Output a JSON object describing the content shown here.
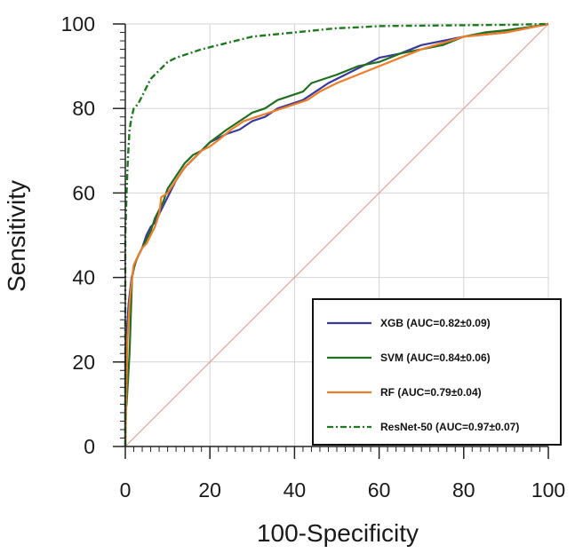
{
  "chart_data": {
    "type": "line",
    "title": "",
    "xlabel": "100-Specificity",
    "ylabel": "Sensitivity",
    "xlim": [
      0,
      100
    ],
    "ylim": [
      0,
      100
    ],
    "xticks": [
      0,
      20,
      40,
      60,
      80,
      100
    ],
    "yticks": [
      0,
      20,
      40,
      60,
      80,
      100
    ],
    "grid": true,
    "legend_position": "bottom-right",
    "reference_line": {
      "name": "chance",
      "color": "#e8a0a0",
      "points": [
        [
          0,
          0
        ],
        [
          100,
          100
        ]
      ]
    },
    "series": [
      {
        "name": "XGB",
        "legend_label": "XGB (AUC=0.82±0.09)",
        "color": "#3a3a9c",
        "style": "solid",
        "points": [
          [
            0,
            0
          ],
          [
            0,
            20
          ],
          [
            0.4,
            28
          ],
          [
            0.8,
            34
          ],
          [
            1.5,
            40
          ],
          [
            2.5,
            44
          ],
          [
            4,
            47
          ],
          [
            5,
            50
          ],
          [
            6,
            52
          ],
          [
            7,
            53
          ],
          [
            8,
            55
          ],
          [
            9,
            57
          ],
          [
            10,
            59
          ],
          [
            12,
            63
          ],
          [
            14,
            66
          ],
          [
            16,
            68
          ],
          [
            18,
            70
          ],
          [
            20,
            72
          ],
          [
            22,
            73
          ],
          [
            24,
            74
          ],
          [
            27,
            75
          ],
          [
            30,
            77
          ],
          [
            33,
            78
          ],
          [
            36,
            80
          ],
          [
            39,
            81
          ],
          [
            42,
            82
          ],
          [
            45,
            84
          ],
          [
            48,
            86
          ],
          [
            52,
            88
          ],
          [
            56,
            90
          ],
          [
            60,
            92
          ],
          [
            65,
            93
          ],
          [
            70,
            95
          ],
          [
            75,
            96
          ],
          [
            80,
            97
          ],
          [
            85,
            97.5
          ],
          [
            90,
            98
          ],
          [
            95,
            99
          ],
          [
            100,
            100
          ]
        ]
      },
      {
        "name": "SVM",
        "legend_label": "SVM (AUC=0.84±0.06)",
        "color": "#1f6f1f",
        "style": "solid",
        "points": [
          [
            0,
            0
          ],
          [
            0,
            8
          ],
          [
            0.3,
            10
          ],
          [
            0.6,
            15
          ],
          [
            1,
            22
          ],
          [
            1.2,
            28
          ],
          [
            1.6,
            40
          ],
          [
            2.2,
            43
          ],
          [
            3,
            45
          ],
          [
            4,
            47
          ],
          [
            5,
            49
          ],
          [
            6,
            51
          ],
          [
            7,
            54
          ],
          [
            8,
            56
          ],
          [
            9,
            58
          ],
          [
            10,
            61
          ],
          [
            12,
            64
          ],
          [
            14,
            67
          ],
          [
            16,
            69
          ],
          [
            18,
            70
          ],
          [
            20,
            72
          ],
          [
            22,
            73.5
          ],
          [
            24,
            75
          ],
          [
            27,
            77
          ],
          [
            30,
            79
          ],
          [
            33,
            80
          ],
          [
            36,
            82
          ],
          [
            39,
            83
          ],
          [
            42,
            84
          ],
          [
            44,
            86
          ],
          [
            47,
            87
          ],
          [
            50,
            88
          ],
          [
            55,
            90
          ],
          [
            60,
            91
          ],
          [
            65,
            93
          ],
          [
            70,
            94
          ],
          [
            75,
            95
          ],
          [
            80,
            97
          ],
          [
            85,
            98
          ],
          [
            90,
            98.5
          ],
          [
            95,
            99.2
          ],
          [
            100,
            100
          ]
        ]
      },
      {
        "name": "RF",
        "legend_label": "RF (AUC=0.79±0.04)",
        "color": "#ee7d2a",
        "style": "solid",
        "points": [
          [
            0,
            0
          ],
          [
            0.5,
            25
          ],
          [
            1,
            34
          ],
          [
            1.5,
            39
          ],
          [
            2,
            43
          ],
          [
            3,
            45
          ],
          [
            4,
            47
          ],
          [
            5,
            48
          ],
          [
            6,
            50
          ],
          [
            7,
            52
          ],
          [
            8,
            55
          ],
          [
            8.5,
            59
          ],
          [
            10,
            60
          ],
          [
            12,
            63
          ],
          [
            14,
            66
          ],
          [
            16,
            68
          ],
          [
            18,
            70
          ],
          [
            20,
            71
          ],
          [
            22,
            72.5
          ],
          [
            25,
            75
          ],
          [
            28,
            77
          ],
          [
            31,
            78
          ],
          [
            34,
            79
          ],
          [
            37,
            80
          ],
          [
            40,
            81
          ],
          [
            43,
            82
          ],
          [
            46,
            84
          ],
          [
            50,
            86
          ],
          [
            55,
            88
          ],
          [
            60,
            90
          ],
          [
            65,
            92
          ],
          [
            70,
            94
          ],
          [
            75,
            95.5
          ],
          [
            80,
            97
          ],
          [
            85,
            97.5
          ],
          [
            90,
            98
          ],
          [
            95,
            99
          ],
          [
            100,
            100
          ]
        ]
      },
      {
        "name": "ResNet-50",
        "legend_label": "ResNet-50 (AUC=0.97±0.07)",
        "color": "#1e7a1e",
        "style": "dashdot",
        "points": [
          [
            0,
            0
          ],
          [
            0,
            30
          ],
          [
            0,
            50
          ],
          [
            0.3,
            60
          ],
          [
            0.6,
            68
          ],
          [
            1,
            75
          ],
          [
            1.5,
            78
          ],
          [
            2,
            80
          ],
          [
            3,
            81
          ],
          [
            4,
            83
          ],
          [
            5,
            85
          ],
          [
            6,
            87
          ],
          [
            7,
            88
          ],
          [
            8,
            89
          ],
          [
            10,
            91
          ],
          [
            12,
            92
          ],
          [
            15,
            93
          ],
          [
            18,
            94
          ],
          [
            22,
            95
          ],
          [
            26,
            96
          ],
          [
            30,
            97
          ],
          [
            35,
            97.5
          ],
          [
            40,
            98
          ],
          [
            45,
            98.5
          ],
          [
            50,
            99
          ],
          [
            55,
            99.2
          ],
          [
            60,
            99.5
          ],
          [
            70,
            99.6
          ],
          [
            80,
            99.7
          ],
          [
            90,
            99.8
          ],
          [
            100,
            100
          ]
        ]
      }
    ]
  }
}
